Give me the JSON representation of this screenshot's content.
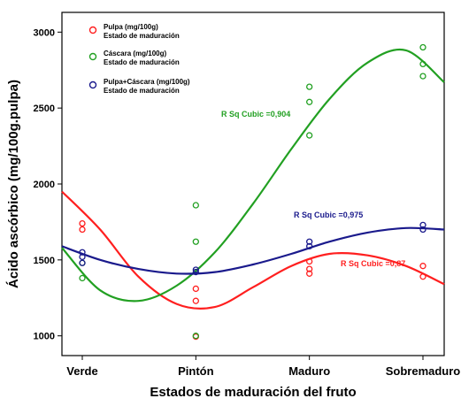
{
  "chart_data": {
    "type": "scatter",
    "xlabel": "Estados de maduración del fruto",
    "ylabel": "Ácido ascórbico (mg/100g.pulpa)",
    "categories": [
      "Verde",
      "Pintón",
      "Maduro",
      "Sobremaduro"
    ],
    "ylim": [
      870,
      3130
    ],
    "yticks": [
      1000,
      1500,
      2000,
      2500,
      3000
    ],
    "grid": false,
    "legend_position": "top-left",
    "series": [
      {
        "name": "Pulpa (mg/100g)",
        "subtitle": "Estado de maduración",
        "color": "#ff1f1f",
        "points": [
          {
            "x": 0,
            "y": 1740
          },
          {
            "x": 0,
            "y": 1700
          },
          {
            "x": 1,
            "y": 1310
          },
          {
            "x": 1,
            "y": 1230
          },
          {
            "x": 1,
            "y": 995
          },
          {
            "x": 2,
            "y": 1490
          },
          {
            "x": 2,
            "y": 1440
          },
          {
            "x": 2,
            "y": 1410
          },
          {
            "x": 3,
            "y": 1460
          },
          {
            "x": 3,
            "y": 1390
          }
        ],
        "fit": {
          "label": "R Sq Cubic =0,87",
          "curve": [
            1950,
            1700,
            1390,
            1210,
            1190,
            1320,
            1460,
            1540,
            1530,
            1460,
            1340
          ]
        }
      },
      {
        "name": "Cáscara (mg/100g)",
        "subtitle": "Estado de maduración",
        "color": "#22a022",
        "points": [
          {
            "x": 0,
            "y": 1380
          },
          {
            "x": 0,
            "y": 1480
          },
          {
            "x": 1,
            "y": 1860
          },
          {
            "x": 1,
            "y": 1620
          },
          {
            "x": 1,
            "y": 1000
          },
          {
            "x": 2,
            "y": 2640
          },
          {
            "x": 2,
            "y": 2540
          },
          {
            "x": 2,
            "y": 2320
          },
          {
            "x": 3,
            "y": 2900
          },
          {
            "x": 3,
            "y": 2790
          },
          {
            "x": 3,
            "y": 2710
          }
        ],
        "fit": {
          "label": "R Sq Cubic =0,904",
          "curve": [
            1580,
            1300,
            1230,
            1330,
            1550,
            1870,
            2230,
            2560,
            2800,
            2880,
            2670
          ]
        }
      },
      {
        "name": "Pulpa+Cáscara (mg/100g)",
        "subtitle": "Estado de maduración",
        "color": "#1a1a8c",
        "points": [
          {
            "x": 0,
            "y": 1550
          },
          {
            "x": 0,
            "y": 1520
          },
          {
            "x": 0,
            "y": 1480
          },
          {
            "x": 1,
            "y": 1435
          },
          {
            "x": 1,
            "y": 1420
          },
          {
            "x": 2,
            "y": 1620
          },
          {
            "x": 2,
            "y": 1590
          },
          {
            "x": 3,
            "y": 1730
          },
          {
            "x": 3,
            "y": 1700
          }
        ],
        "fit": {
          "label": "R Sq Cubic =0,975",
          "curve": [
            1590,
            1500,
            1440,
            1410,
            1420,
            1470,
            1540,
            1620,
            1680,
            1710,
            1700
          ]
        }
      }
    ]
  }
}
